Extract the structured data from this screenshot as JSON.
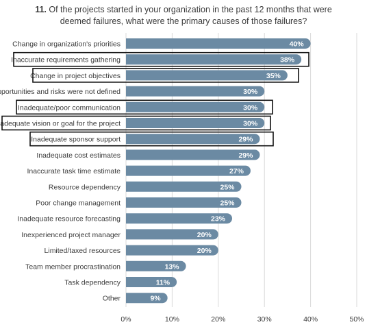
{
  "question": {
    "number": "11.",
    "line1": "Of the projects started in your organization in the past 12 months that were",
    "line2": "deemed failures, what were the primary causes of those failures?"
  },
  "colors": {
    "bar": "#6b8aa3",
    "bar_label": "#ffffff",
    "highlight_box": "#111111",
    "gridline": "#d9d9d9",
    "text": "#3a3a3a"
  },
  "chart_data": {
    "type": "bar",
    "orientation": "horizontal",
    "title": "Of the projects started in your organization in the past 12 months that were deemed failures, what were the primary causes of those failures?",
    "categories": [
      "Change in organization's priorities",
      "Inaccurate requirements gathering",
      "Change in project objectives",
      "Opportunities and risks were not defined",
      "Inadequate/poor communication",
      "Inadequate vision or goal for the project",
      "Inadequate sponsor support",
      "Inadequate cost estimates",
      "Inaccurate task time estimate",
      "Resource dependency",
      "Poor change management",
      "Inadequate resource forecasting",
      "Inexperienced project manager",
      "Limited/taxed resources",
      "Team member procrastination",
      "Task dependency",
      "Other"
    ],
    "values": [
      40,
      38,
      35,
      30,
      30,
      30,
      29,
      29,
      27,
      25,
      25,
      23,
      20,
      20,
      13,
      11,
      9
    ],
    "value_labels": [
      "40%",
      "38%",
      "35%",
      "30%",
      "30%",
      "30%",
      "29%",
      "29%",
      "27%",
      "25%",
      "25%",
      "23%",
      "20%",
      "20%",
      "13%",
      "11%",
      "9%"
    ],
    "highlighted": [
      false,
      true,
      true,
      false,
      true,
      true,
      true,
      false,
      false,
      false,
      false,
      false,
      false,
      false,
      false,
      false,
      false
    ],
    "xlim": [
      0,
      50
    ],
    "xticks": [
      0,
      10,
      20,
      30,
      40,
      50
    ],
    "xtick_labels": [
      "0%",
      "10%",
      "20%",
      "30%",
      "40%",
      "50%"
    ],
    "grid": true,
    "xlabel": "",
    "ylabel": ""
  }
}
